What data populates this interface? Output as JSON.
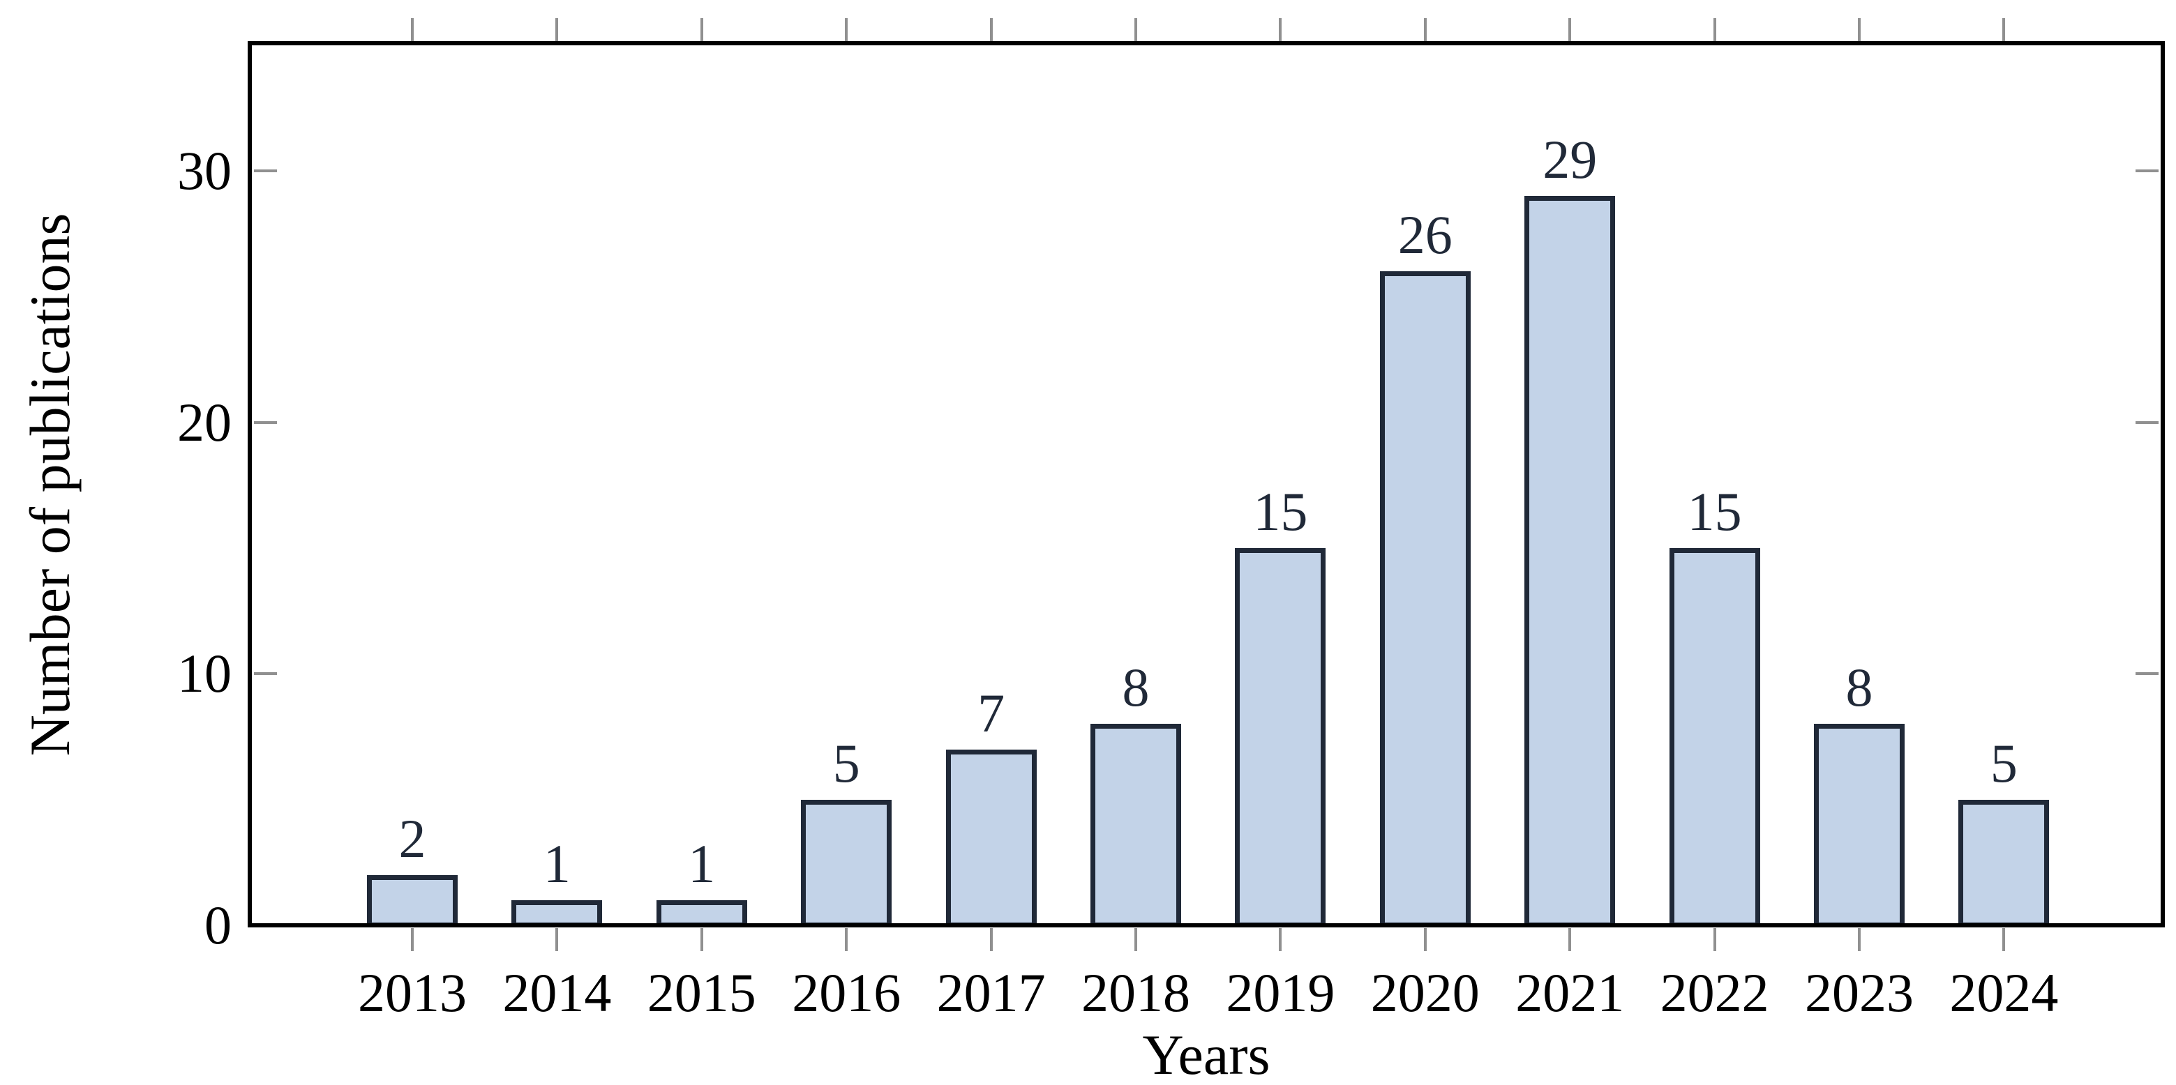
{
  "chart_data": {
    "type": "bar",
    "title": "",
    "xlabel": "Years",
    "ylabel": "Number of publications",
    "categories": [
      "2013",
      "2014",
      "2015",
      "2016",
      "2017",
      "2018",
      "2019",
      "2020",
      "2021",
      "2022",
      "2023",
      "2024"
    ],
    "values": [
      2,
      1,
      1,
      5,
      7,
      8,
      15,
      26,
      29,
      15,
      8,
      5
    ],
    "bar_value_labels": [
      "2",
      "1",
      "1",
      "5",
      "7",
      "8",
      "15",
      "26",
      "29",
      "15",
      "8",
      "5"
    ],
    "ylim": [
      0,
      35
    ],
    "yticks": [
      0,
      10,
      20,
      30
    ],
    "ytick_labels": [
      "0",
      "10",
      "20",
      "30"
    ],
    "grid": false,
    "legend_position": "none",
    "axes_style": "boxed, x ticks outside top and bottom, y ticks inside left and right",
    "colors": {
      "bar_fill": "#c3d3e8",
      "bar_edge": "#202938",
      "value_label_text": "#202938",
      "axis_line": "#000000",
      "tick_mark": "#909090",
      "tick_label_text": "#000000",
      "background": "#ffffff"
    }
  }
}
